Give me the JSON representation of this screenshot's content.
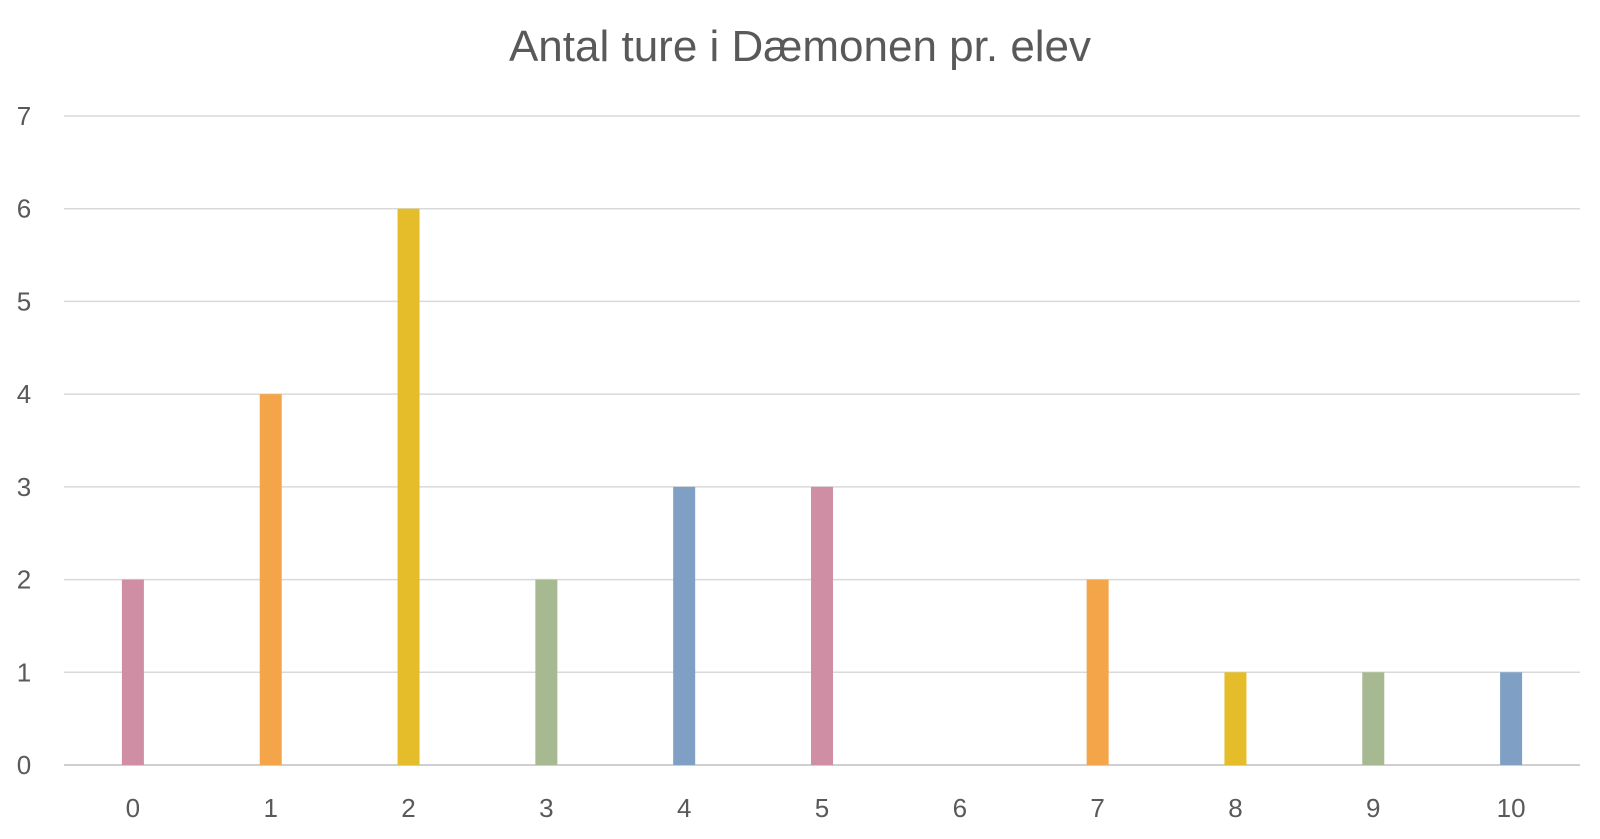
{
  "chart_data": {
    "type": "bar",
    "title": "Antal ture i Dæmonen pr. elev",
    "xlabel": "",
    "ylabel": "",
    "categories": [
      "0",
      "1",
      "2",
      "3",
      "4",
      "5",
      "6",
      "7",
      "8",
      "9",
      "10"
    ],
    "values": [
      2,
      4,
      6,
      2,
      3,
      3,
      0,
      2,
      1,
      1,
      1
    ],
    "bar_colors": [
      "#D08EA5",
      "#F4A54A",
      "#E5BD2A",
      "#A7B990",
      "#7F9FC4",
      "#D08EA5",
      "#F4A54A",
      "#F4A54A",
      "#E5BD2A",
      "#A7B990",
      "#7F9FC4"
    ],
    "ylim": [
      0,
      7
    ],
    "yticks": [
      "0",
      "1",
      "2",
      "3",
      "4",
      "5",
      "6",
      "7"
    ],
    "grid": true,
    "legend": "none"
  }
}
